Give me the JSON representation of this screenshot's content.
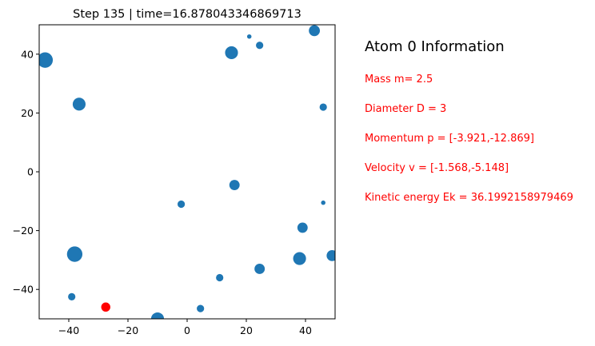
{
  "chart_data": {
    "type": "scatter",
    "title": "Step 135  |  time=16.878043346869713",
    "xlabel": "",
    "ylabel": "",
    "xlim": [
      -50,
      50
    ],
    "ylim": [
      -50,
      50
    ],
    "xticks": [
      -40,
      -20,
      0,
      20,
      40
    ],
    "yticks": [
      -40,
      -20,
      0,
      20,
      40
    ],
    "grid": false,
    "colors": {
      "atom": "#1f77b4",
      "highlight": "#ff0000"
    },
    "points": [
      {
        "x": 43.0,
        "y": 48.0,
        "d": 3
      },
      {
        "x": 21.0,
        "y": 46.0,
        "d": 1.2
      },
      {
        "x": 24.5,
        "y": 43.0,
        "d": 2
      },
      {
        "x": 15.0,
        "y": 40.5,
        "d": 3.5
      },
      {
        "x": -48.0,
        "y": 38.0,
        "d": 4.2
      },
      {
        "x": -36.5,
        "y": 23.0,
        "d": 3.5
      },
      {
        "x": 46.0,
        "y": 22.0,
        "d": 2
      },
      {
        "x": 16.0,
        "y": -4.5,
        "d": 2.8
      },
      {
        "x": -2.0,
        "y": -11.0,
        "d": 2
      },
      {
        "x": 46.0,
        "y": -10.5,
        "d": 1.2
      },
      {
        "x": 39.0,
        "y": -19.0,
        "d": 2.8
      },
      {
        "x": -38.0,
        "y": -28.0,
        "d": 4.2
      },
      {
        "x": 38.0,
        "y": -29.5,
        "d": 3.5
      },
      {
        "x": 49.0,
        "y": -28.5,
        "d": 3
      },
      {
        "x": 24.5,
        "y": -33.0,
        "d": 2.8
      },
      {
        "x": 11.0,
        "y": -36.0,
        "d": 2
      },
      {
        "x": -39.0,
        "y": -42.5,
        "d": 2
      },
      {
        "x": 4.5,
        "y": -46.5,
        "d": 2
      },
      {
        "x": -10.0,
        "y": -50.0,
        "d": 3.5
      }
    ],
    "highlight": {
      "x": -27.5,
      "y": -46.0,
      "d": 2.5
    }
  },
  "info": {
    "title": "Atom 0 Information",
    "mass": "Mass m= 2.5",
    "diameter": "Diameter D = 3",
    "momentum": "Momentum  p = [-3.921,-12.869]",
    "velocity": "Velocity  v = [-1.568,-5.148]",
    "kinetic": "Kinetic energy Ek = 36.1992158979469"
  }
}
